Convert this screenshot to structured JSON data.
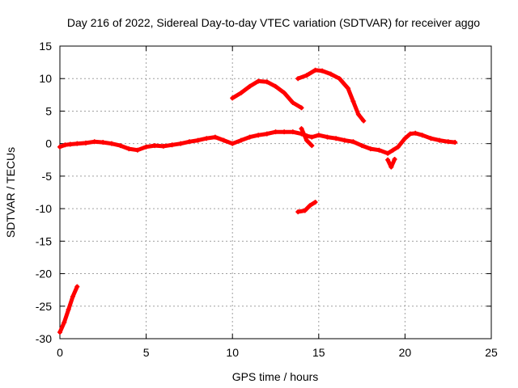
{
  "chart_data": {
    "type": "line",
    "title": "Day 216 of 2022, Sidereal Day-to-day VTEC variation (SDTVAR) for receiver aggo",
    "xlabel": "GPS time / hours",
    "ylabel": "SDTVAR / TECUs",
    "xlim": [
      0,
      25
    ],
    "ylim": [
      -30,
      15
    ],
    "xticks": [
      0,
      5,
      10,
      15,
      20,
      25
    ],
    "yticks": [
      -30,
      -25,
      -20,
      -15,
      -10,
      -5,
      0,
      5,
      10,
      15
    ],
    "grid": true,
    "series_color": "#ff0000",
    "series": [
      {
        "name": "main",
        "points": [
          [
            0,
            -0.5
          ],
          [
            0.3,
            -0.2
          ],
          [
            0.6,
            -0.1
          ],
          [
            1,
            0
          ],
          [
            1.5,
            0.1
          ],
          [
            2,
            0.3
          ],
          [
            2.5,
            0.2
          ],
          [
            3,
            0
          ],
          [
            3.5,
            -0.3
          ],
          [
            4,
            -0.8
          ],
          [
            4.5,
            -1
          ],
          [
            5,
            -0.5
          ],
          [
            5.5,
            -0.3
          ],
          [
            6,
            -0.4
          ],
          [
            6.5,
            -0.2
          ],
          [
            7,
            0
          ],
          [
            7.5,
            0.3
          ],
          [
            8,
            0.5
          ],
          [
            8.5,
            0.8
          ],
          [
            9,
            1
          ],
          [
            9.5,
            0.5
          ],
          [
            10,
            0
          ],
          [
            10.5,
            0.5
          ],
          [
            11,
            1
          ],
          [
            11.5,
            1.3
          ],
          [
            12,
            1.5
          ],
          [
            12.5,
            1.8
          ],
          [
            13,
            1.8
          ],
          [
            13.5,
            1.8
          ],
          [
            14,
            1.5
          ],
          [
            14.3,
            1.2
          ],
          [
            14.6,
            1
          ],
          [
            15,
            1.3
          ],
          [
            15.5,
            1
          ],
          [
            16,
            0.8
          ],
          [
            16.5,
            0.5
          ],
          [
            17,
            0.3
          ],
          [
            17.5,
            -0.3
          ],
          [
            18,
            -0.8
          ],
          [
            18.5,
            -1
          ],
          [
            19,
            -1.5
          ],
          [
            19.3,
            -1
          ],
          [
            19.6,
            -0.5
          ],
          [
            20,
            0.8
          ],
          [
            20.3,
            1.5
          ],
          [
            20.6,
            1.6
          ],
          [
            21,
            1.3
          ],
          [
            21.5,
            0.8
          ],
          [
            22,
            0.5
          ],
          [
            22.5,
            0.3
          ],
          [
            22.9,
            0.2
          ]
        ]
      },
      {
        "name": "morning-drop",
        "points": [
          [
            0,
            -29
          ],
          [
            0.25,
            -27.5
          ],
          [
            0.5,
            -25.5
          ],
          [
            0.75,
            -23.5
          ],
          [
            1,
            -22
          ]
        ]
      },
      {
        "name": "arc-1",
        "points": [
          [
            10,
            7
          ],
          [
            10.5,
            7.8
          ],
          [
            11,
            8.8
          ],
          [
            11.5,
            9.6
          ],
          [
            12,
            9.5
          ],
          [
            12.5,
            8.8
          ],
          [
            13,
            7.8
          ],
          [
            13.5,
            6.3
          ],
          [
            14,
            5.5
          ]
        ]
      },
      {
        "name": "arc-2",
        "points": [
          [
            13.8,
            10
          ],
          [
            14.3,
            10.5
          ],
          [
            14.8,
            11.3
          ],
          [
            15.2,
            11.2
          ],
          [
            15.7,
            10.7
          ],
          [
            16.2,
            10
          ],
          [
            16.7,
            8.5
          ],
          [
            17,
            6.5
          ],
          [
            17.3,
            4.5
          ],
          [
            17.6,
            3.5
          ]
        ]
      },
      {
        "name": "low-segment",
        "points": [
          [
            13.8,
            -10.5
          ],
          [
            14.2,
            -10.3
          ],
          [
            14.5,
            -9.5
          ],
          [
            14.8,
            -9
          ]
        ]
      },
      {
        "name": "spike",
        "points": [
          [
            14,
            2.3
          ],
          [
            14.3,
            0.5
          ],
          [
            14.6,
            -0.3
          ]
        ]
      },
      {
        "name": "dip",
        "points": [
          [
            19,
            -2.5
          ],
          [
            19.2,
            -3.6
          ],
          [
            19.4,
            -2.4
          ]
        ]
      }
    ]
  }
}
